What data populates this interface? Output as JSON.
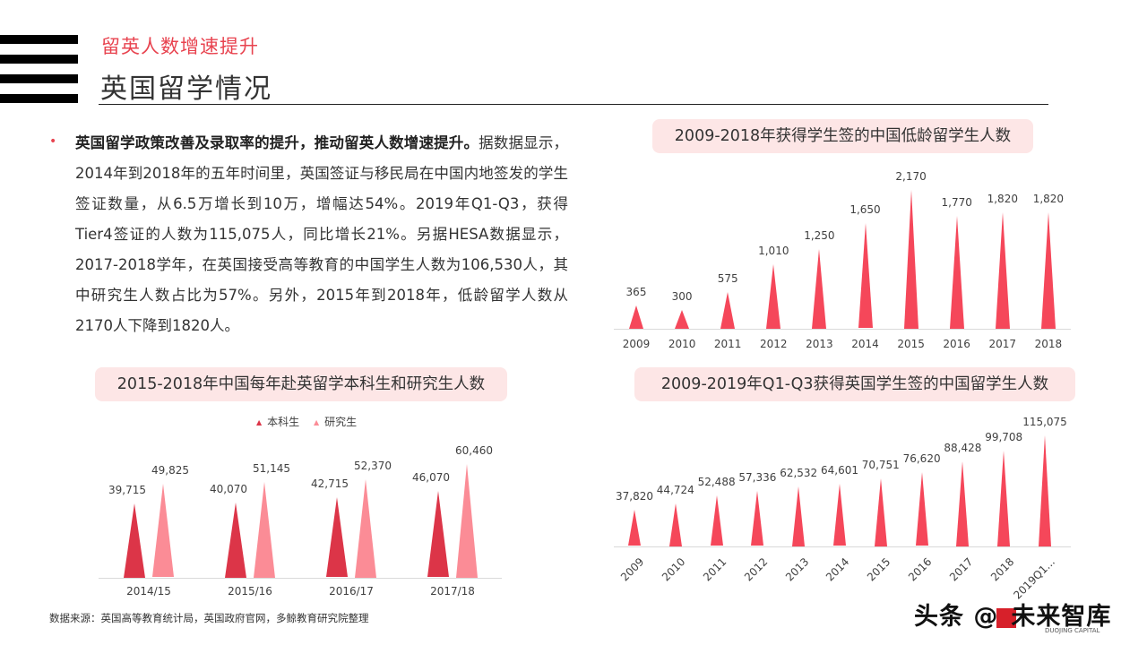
{
  "header": {
    "subtitle": "留英人数增速提升",
    "title": "英国留学情况"
  },
  "summary": {
    "bold": "英国留学政策改善及录取率的提升，推动留英人数增速提升。",
    "body": "据数据显示，2014年到2018年的五年时间里，英国签证与移民局在中国内地签发的学生签证数量，从6.5万增长到10万，增幅达54%。2019年Q1-Q3，获得Tier4签证的人数为115,075人，同比增长21%。另据HESA数据显示，2017-2018学年，在英国接受高等教育的中国学生人数为106,530人，其中研究生人数占比为57%。另外，2015年到2018年，低龄留学人数从2170人下降到1820人。"
  },
  "colors": {
    "accent": "#e8434f",
    "bar": "#f5475a",
    "undergrad": "#dc3548",
    "postgrad": "#fb8c96",
    "title_box": "#fde6e6"
  },
  "chart_data": [
    {
      "type": "bar",
      "title": "2009-2018年获得学生签的中国低龄留学生人数",
      "categories": [
        "2009",
        "2010",
        "2011",
        "2012",
        "2013",
        "2014",
        "2015",
        "2016",
        "2017",
        "2018"
      ],
      "values": [
        365,
        300,
        575,
        1010,
        1250,
        1650,
        2170,
        1770,
        1820,
        1820
      ],
      "labels": [
        "365",
        "300",
        "575",
        "1,010",
        "1,250",
        "1,650",
        "2,170",
        "1,770",
        "1,820",
        "1,820"
      ],
      "xlabel": "",
      "ylabel": "",
      "grid": false
    },
    {
      "type": "bar",
      "title": "2015-2018年中国每年赴英留学本科生和研究生人数",
      "categories": [
        "2014/15",
        "2015/16",
        "2016/17",
        "2017/18"
      ],
      "series": [
        {
          "name": "本科生",
          "values": [
            39715,
            40070,
            42715,
            46070
          ],
          "labels": [
            "39,715",
            "40,070",
            "42,715",
            "46,070"
          ]
        },
        {
          "name": "研究生",
          "values": [
            49825,
            51145,
            52370,
            60460
          ],
          "labels": [
            "49,825",
            "51,145",
            "52,370",
            "60,460"
          ]
        }
      ],
      "legend_position": "top",
      "xlabel": "",
      "ylabel": "",
      "grid": false
    },
    {
      "type": "bar",
      "title": "2009-2019年Q1-Q3获得英国学生签的中国留学生人数",
      "categories": [
        "2009",
        "2010",
        "2011",
        "2012",
        "2013",
        "2014",
        "2015",
        "2016",
        "2017",
        "2018",
        "2019Q1..."
      ],
      "values": [
        37820,
        44724,
        52488,
        57336,
        62532,
        64601,
        70751,
        76620,
        88428,
        99708,
        115075
      ],
      "labels": [
        "37,820",
        "44,724",
        "52,488",
        "57,336",
        "62,532",
        "64,601",
        "70,751",
        "76,620",
        "88,428",
        "99,708",
        "115,075"
      ],
      "xlabel": "",
      "ylabel": "",
      "grid": false
    }
  ],
  "footer": {
    "source": "数据来源：英国高等教育统计局，英国政府官网，多鲸教育研究院整理",
    "watermark_a": "头条 @",
    "watermark_b": "未来智库",
    "watermark_sub": "DUOJING CAPITAL"
  }
}
